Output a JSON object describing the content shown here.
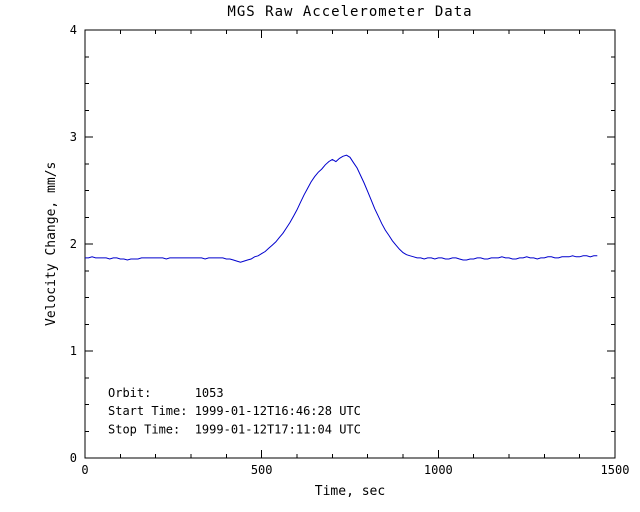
{
  "chart_data": {
    "type": "line",
    "title": "MGS Raw Accelerometer Data",
    "xlabel": "Time, sec",
    "ylabel": "Velocity Change, mm/s",
    "xlim": [
      0,
      1500
    ],
    "ylim": [
      0,
      4
    ],
    "x_ticks": [
      0,
      500,
      1000,
      1500
    ],
    "x_tick_labels": [
      "0",
      "500",
      "1000",
      "1500"
    ],
    "y_ticks": [
      0,
      1,
      2,
      3,
      4
    ],
    "y_tick_labels": [
      "0",
      "1",
      "2",
      "3",
      "4"
    ],
    "x_minor_interval": 100,
    "y_minor_interval": 0.25,
    "grid": false,
    "legend": "none",
    "background": "#ffffff",
    "axis_color": "#000000",
    "text_color": "#000000",
    "line_color": "#0000cd",
    "annotations": [
      {
        "text": "Orbit:      1053",
        "x": 65,
        "y": 0.57
      },
      {
        "text": "Start Time: 1999-01-12T16:46:28 UTC",
        "x": 65,
        "y": 0.4
      },
      {
        "text": "Stop Time:  1999-01-12T17:11:04 UTC",
        "x": 65,
        "y": 0.23
      }
    ],
    "series": [
      {
        "name": "velocity-change",
        "color": "#0000cd",
        "x": [
          0,
          10,
          20,
          30,
          40,
          50,
          60,
          70,
          80,
          90,
          100,
          110,
          120,
          130,
          140,
          150,
          160,
          170,
          180,
          190,
          200,
          210,
          220,
          230,
          240,
          250,
          260,
          270,
          280,
          290,
          300,
          310,
          320,
          330,
          340,
          350,
          360,
          370,
          380,
          390,
          400,
          410,
          420,
          430,
          440,
          450,
          460,
          470,
          480,
          490,
          500,
          510,
          520,
          530,
          540,
          550,
          560,
          570,
          580,
          590,
          600,
          610,
          620,
          630,
          640,
          650,
          660,
          670,
          680,
          690,
          700,
          710,
          720,
          730,
          740,
          750,
          760,
          770,
          780,
          790,
          800,
          810,
          820,
          830,
          840,
          850,
          860,
          870,
          880,
          890,
          900,
          910,
          920,
          930,
          940,
          950,
          960,
          970,
          980,
          990,
          1000,
          1010,
          1020,
          1030,
          1040,
          1050,
          1060,
          1070,
          1080,
          1090,
          1100,
          1110,
          1120,
          1130,
          1140,
          1150,
          1160,
          1170,
          1180,
          1190,
          1200,
          1210,
          1220,
          1230,
          1240,
          1250,
          1260,
          1270,
          1280,
          1290,
          1300,
          1310,
          1320,
          1330,
          1340,
          1350,
          1360,
          1370,
          1380,
          1390,
          1400,
          1410,
          1420,
          1430,
          1440,
          1450
        ],
        "y": [
          1.87,
          1.87,
          1.88,
          1.87,
          1.87,
          1.87,
          1.87,
          1.86,
          1.87,
          1.87,
          1.86,
          1.86,
          1.85,
          1.86,
          1.86,
          1.86,
          1.87,
          1.87,
          1.87,
          1.87,
          1.87,
          1.87,
          1.87,
          1.86,
          1.87,
          1.87,
          1.87,
          1.87,
          1.87,
          1.87,
          1.87,
          1.87,
          1.87,
          1.87,
          1.86,
          1.87,
          1.87,
          1.87,
          1.87,
          1.87,
          1.86,
          1.86,
          1.85,
          1.84,
          1.83,
          1.84,
          1.85,
          1.86,
          1.88,
          1.89,
          1.91,
          1.93,
          1.96,
          1.99,
          2.02,
          2.06,
          2.1,
          2.15,
          2.2,
          2.26,
          2.32,
          2.39,
          2.46,
          2.52,
          2.58,
          2.63,
          2.67,
          2.7,
          2.74,
          2.77,
          2.79,
          2.77,
          2.8,
          2.82,
          2.83,
          2.81,
          2.76,
          2.71,
          2.64,
          2.57,
          2.49,
          2.41,
          2.33,
          2.26,
          2.19,
          2.13,
          2.08,
          2.03,
          1.99,
          1.95,
          1.92,
          1.9,
          1.89,
          1.88,
          1.87,
          1.87,
          1.86,
          1.87,
          1.87,
          1.86,
          1.87,
          1.87,
          1.86,
          1.86,
          1.87,
          1.87,
          1.86,
          1.85,
          1.85,
          1.86,
          1.86,
          1.87,
          1.87,
          1.86,
          1.86,
          1.87,
          1.87,
          1.87,
          1.88,
          1.87,
          1.87,
          1.86,
          1.86,
          1.87,
          1.87,
          1.88,
          1.87,
          1.87,
          1.86,
          1.87,
          1.87,
          1.88,
          1.88,
          1.87,
          1.87,
          1.88,
          1.88,
          1.88,
          1.89,
          1.88,
          1.88,
          1.89,
          1.89,
          1.88,
          1.89,
          1.89
        ]
      }
    ]
  }
}
